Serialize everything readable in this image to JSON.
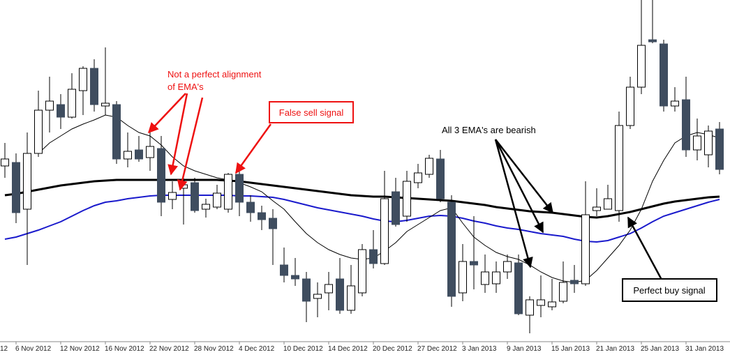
{
  "chart_data": {
    "type": "candlestick",
    "ylim": [
      0,
      490
    ],
    "up_color": "#ffffff",
    "down_color": "#3f4d5f",
    "edge_label": "12",
    "categories": [
      null,
      "6 Nov 2012",
      null,
      null,
      null,
      "12 Nov 2012",
      null,
      null,
      null,
      "16 Nov 2012",
      null,
      null,
      null,
      "22 Nov 2012",
      null,
      null,
      null,
      "28 Nov 2012",
      null,
      null,
      null,
      "4 Dec 2012",
      null,
      null,
      null,
      "10 Dec 2012",
      null,
      null,
      null,
      "14 Dec 2012",
      null,
      null,
      null,
      "20 Dec 2012",
      null,
      null,
      null,
      "27 Dec 2012",
      null,
      null,
      null,
      "3 Jan 2013",
      null,
      null,
      null,
      "9 Jan 2013",
      null,
      null,
      null,
      "15 Jan 2013",
      null,
      null,
      null,
      "21 Jan 2013",
      null,
      null,
      null,
      "25 Jan 2013",
      null,
      null,
      null,
      "31 Jan 2013",
      null,
      null,
      null
    ],
    "open": [
      252,
      257,
      190,
      270,
      332,
      340,
      322,
      360,
      392,
      338,
      340,
      262,
      275,
      264,
      277,
      204,
      220,
      228,
      190,
      193,
      190,
      240,
      200,
      185,
      177,
      110,
      95,
      90,
      62,
      70,
      90,
      45,
      70,
      132,
      112,
      215,
      180,
      228,
      240,
      262,
      200,
      70,
      115,
      82,
      83,
      100,
      113,
      38,
      52,
      50,
      58,
      88,
      83,
      188,
      190,
      188,
      310,
      365,
      433,
      427,
      338,
      347,
      275,
      268,
      305
    ],
    "high": [
      285,
      270,
      300,
      360,
      380,
      355,
      385,
      395,
      405,
      422,
      345,
      300,
      295,
      305,
      295,
      230,
      235,
      235,
      205,
      225,
      242,
      250,
      210,
      195,
      190,
      135,
      120,
      100,
      85,
      100,
      120,
      110,
      140,
      160,
      245,
      235,
      245,
      255,
      268,
      275,
      210,
      140,
      180,
      125,
      115,
      125,
      125,
      65,
      95,
      90,
      115,
      110,
      230,
      220,
      225,
      330,
      380,
      490,
      490,
      433,
      365,
      380,
      320,
      310,
      315
    ],
    "low": [
      235,
      170,
      110,
      265,
      300,
      305,
      320,
      325,
      330,
      325,
      255,
      250,
      258,
      245,
      180,
      190,
      168,
      185,
      178,
      190,
      185,
      180,
      172,
      160,
      110,
      85,
      80,
      28,
      35,
      45,
      40,
      40,
      65,
      105,
      110,
      165,
      172,
      220,
      235,
      200,
      50,
      58,
      75,
      70,
      70,
      90,
      38,
      12,
      35,
      45,
      55,
      70,
      80,
      180,
      190,
      172,
      305,
      355,
      428,
      330,
      330,
      265,
      260,
      250,
      240
    ],
    "close": [
      262,
      185,
      270,
      332,
      345,
      322,
      362,
      392,
      340,
      342,
      262,
      273,
      262,
      280,
      200,
      214,
      225,
      188,
      197,
      213,
      240,
      200,
      185,
      175,
      162,
      95,
      90,
      58,
      68,
      82,
      45,
      80,
      132,
      112,
      205,
      168,
      230,
      242,
      263,
      205,
      65,
      115,
      110,
      100,
      100,
      115,
      40,
      60,
      60,
      57,
      85,
      83,
      182,
      193,
      205,
      310,
      365,
      425,
      430,
      338,
      345,
      275,
      295,
      302,
      247
    ],
    "series": [
      {
        "color": "#000000",
        "values": [
          210,
          212,
          215,
          218,
          221,
          224,
          226,
          228,
          230,
          231,
          232,
          232,
          232,
          232,
          232,
          232,
          232,
          232,
          232,
          232,
          231,
          230,
          228,
          226,
          224,
          222,
          220,
          218,
          216,
          214,
          212,
          210,
          209,
          208,
          208,
          207,
          206,
          205,
          204,
          203,
          202,
          200,
          198,
          196,
          193,
          191,
          189,
          187,
          186,
          185,
          183,
          181,
          179,
          178,
          180,
          183,
          186,
          190,
          194,
          198,
          201,
          203,
          205,
          207,
          208
        ]
      },
      {
        "color": "#1a1acc",
        "values": [
          147,
          150,
          155,
          160,
          166,
          172,
          180,
          188,
          195,
          200,
          202,
          205,
          207,
          209,
          210,
          210,
          210,
          210,
          210,
          210,
          210,
          209,
          209,
          208,
          207,
          204,
          200,
          196,
          192,
          189,
          186,
          183,
          180,
          176,
          173,
          172,
          174,
          177,
          180,
          181,
          180,
          177,
          173,
          170,
          166,
          163,
          161,
          158,
          155,
          153,
          151,
          147,
          144,
          143,
          145,
          150,
          155,
          163,
          172,
          180,
          185,
          190,
          195,
          200,
          204
        ]
      },
      {
        "color": "#000000",
        "values": [
          null,
          null,
          null,
          270,
          285,
          295,
          305,
          312,
          318,
          325,
          322,
          310,
          300,
          295,
          282,
          265,
          252,
          245,
          240,
          235,
          232,
          228,
          222,
          215,
          202,
          190,
          172,
          155,
          142,
          132,
          125,
          120,
          118,
          120,
          130,
          142,
          158,
          168,
          178,
          188,
          192,
          170,
          150,
          138,
          128,
          122,
          118,
          110,
          100,
          92,
          87,
          85,
          88,
          102,
          120,
          138,
          160,
          190,
          230,
          260,
          285,
          295,
          300,
          297,
          292
        ]
      }
    ],
    "annotations": {
      "ema_alignment": [
        "Not a perfect alignment",
        "of EMA's"
      ],
      "false_sell": "False sell signal",
      "bearish": "All 3 EMA's are bearish",
      "buy": "Perfect buy signal"
    }
  }
}
